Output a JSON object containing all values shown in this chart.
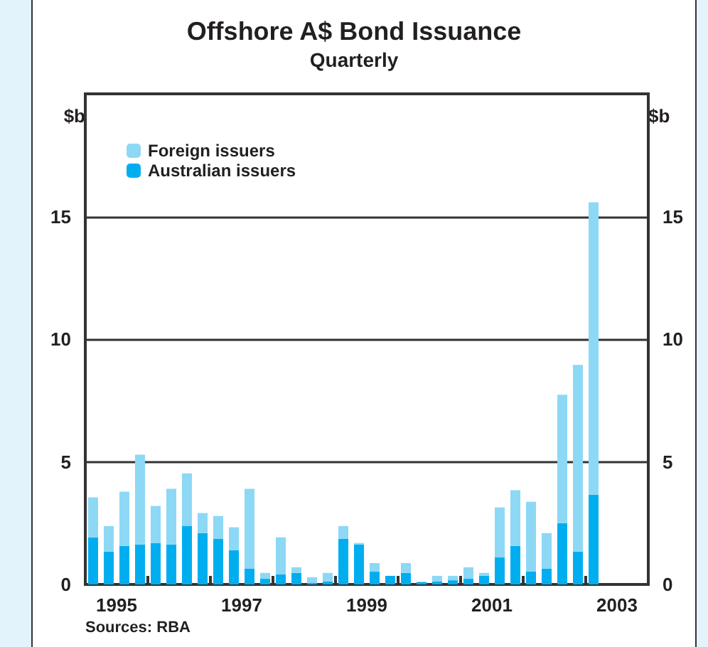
{
  "chart_data": {
    "type": "bar",
    "title": "Offshore A$ Bond Issuance",
    "subtitle": "Quarterly",
    "ylabel": "$b",
    "y2label": "$b",
    "x": [
      1995.125,
      1995.375,
      1995.625,
      1995.875,
      1996.125,
      1996.375,
      1996.625,
      1996.875,
      1997.125,
      1997.375,
      1997.625,
      1997.875,
      1998.125,
      1998.375,
      1998.625,
      1998.875,
      1999.125,
      1999.375,
      1999.625,
      1999.875,
      2000.125,
      2000.375,
      2000.625,
      2000.875,
      2001.125,
      2001.375,
      2001.625,
      2001.875,
      2002.125,
      2002.375,
      2002.625,
      2002.875,
      2003.125
    ],
    "stacked": true,
    "series": [
      {
        "name": "Australian issuers",
        "color": "#00aeef",
        "values": [
          1.92,
          1.34,
          1.57,
          1.63,
          1.69,
          1.63,
          2.38,
          2.09,
          1.86,
          1.4,
          0.64,
          0.23,
          0.41,
          0.47,
          0.05,
          0.12,
          1.86,
          1.63,
          0.52,
          0.35,
          0.47,
          0.1,
          0.12,
          0.17,
          0.23,
          0.35,
          1.1,
          1.57,
          0.52,
          0.64,
          2.5,
          1.34,
          3.66
        ]
      },
      {
        "name": "Foreign issuers",
        "color": "#8dd8f5",
        "values": [
          1.63,
          1.04,
          2.21,
          3.66,
          1.51,
          2.27,
          2.15,
          0.82,
          0.93,
          0.93,
          3.26,
          0.24,
          1.51,
          0.23,
          0.24,
          0.35,
          0.52,
          0.06,
          0.35,
          0,
          0.4,
          0,
          0.23,
          0.18,
          0.47,
          0.12,
          2.04,
          2.27,
          2.85,
          1.45,
          5.23,
          7.61,
          11.92
        ]
      }
    ],
    "xlim": [
      1995,
      2004
    ],
    "xticks": [
      {
        "value": 1995.5,
        "label": "1995"
      },
      {
        "value": 1996,
        "label": null
      },
      {
        "value": 1997,
        "label": null
      },
      {
        "value": 1997.5,
        "label": "1997"
      },
      {
        "value": 1998,
        "label": null
      },
      {
        "value": 1999,
        "label": null
      },
      {
        "value": 1999.5,
        "label": "1999"
      },
      {
        "value": 2000,
        "label": null
      },
      {
        "value": 2001,
        "label": null
      },
      {
        "value": 2001.5,
        "label": "2001"
      },
      {
        "value": 2002,
        "label": null
      },
      {
        "value": 2003,
        "label": null
      },
      {
        "value": 2003.5,
        "label": "2003"
      }
    ],
    "ylim": [
      0,
      20
    ],
    "yticks": [
      0,
      5,
      10,
      15
    ],
    "y2lim": [
      0,
      20
    ],
    "y2ticks": [
      0,
      5,
      10,
      15
    ],
    "grid": "y",
    "legend": "top left",
    "annotations": [
      "Sources: RBA"
    ]
  }
}
